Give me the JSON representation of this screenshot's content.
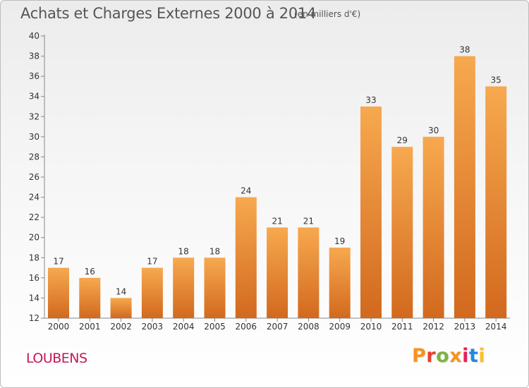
{
  "chart_data": {
    "type": "bar",
    "title": "Achats et Charges Externes 2000 à 2014",
    "subtitle": "(en milliers d'€)",
    "categories": [
      "2000",
      "2001",
      "2002",
      "2003",
      "2004",
      "2005",
      "2006",
      "2007",
      "2008",
      "2009",
      "2010",
      "2011",
      "2012",
      "2013",
      "2014"
    ],
    "values": [
      17,
      16,
      14,
      17,
      18,
      18,
      24,
      21,
      21,
      19,
      33,
      29,
      30,
      38,
      35
    ],
    "ylim": [
      12,
      40
    ],
    "yticks": [
      12,
      14,
      16,
      18,
      20,
      22,
      24,
      26,
      28,
      30,
      32,
      34,
      36,
      38,
      40
    ],
    "xlabel": "",
    "ylabel": "",
    "grid": false,
    "legend": "none"
  },
  "footer": {
    "commune": "LOUBENS",
    "brand": "Proxiti"
  },
  "colors": {
    "bar_light": "#f7a94f",
    "bar_dark": "#d2691e",
    "commune": "#c2185b",
    "brand": [
      "#f7931e",
      "#e8412b",
      "#7cb342",
      "#f7931e",
      "#e91e63",
      "#1e88e5",
      "#fbc02d"
    ]
  }
}
